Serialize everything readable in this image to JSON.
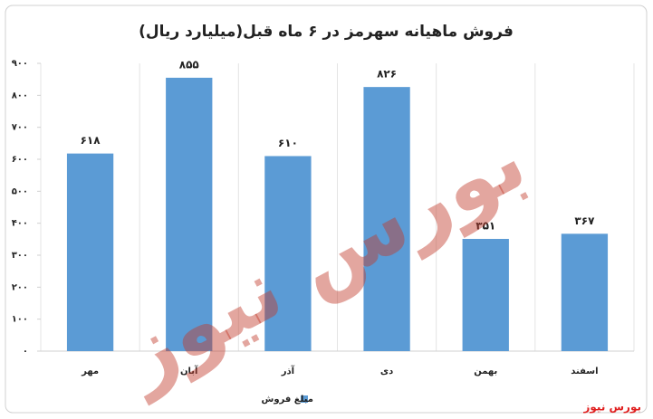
{
  "chart_data": {
    "type": "bar",
    "title": "فروش ماهیانه سهرمز در ۶ ماه قبل(میلیارد ریال)",
    "categories": [
      "مهر",
      "آبان",
      "آذر",
      "دی",
      "بهمن",
      "اسفند"
    ],
    "series": [
      {
        "name": "مبلغ فروش",
        "color": "#5b9bd5",
        "values": [
          618,
          855,
          610,
          826,
          351,
          367
        ],
        "value_labels": [
          "۶۱۸",
          "۸۵۵",
          "۶۱۰",
          "۸۲۶",
          "۳۵۱",
          "۳۶۷"
        ]
      }
    ],
    "ylim": [
      0,
      900
    ],
    "yticks": [
      {
        "value": 0,
        "label": "۰"
      },
      {
        "value": 100,
        "label": "۱۰۰"
      },
      {
        "value": 200,
        "label": "۲۰۰"
      },
      {
        "value": 300,
        "label": "۳۰۰"
      },
      {
        "value": 400,
        "label": "۴۰۰"
      },
      {
        "value": 500,
        "label": "۵۰۰"
      },
      {
        "value": 600,
        "label": "۶۰۰"
      },
      {
        "value": 700,
        "label": "۷۰۰"
      },
      {
        "value": 800,
        "label": "۸۰۰"
      },
      {
        "value": 900,
        "label": "۹۰۰"
      }
    ],
    "grid": false,
    "watermark": "بورس نیوز",
    "source": "بورس نیوز"
  }
}
